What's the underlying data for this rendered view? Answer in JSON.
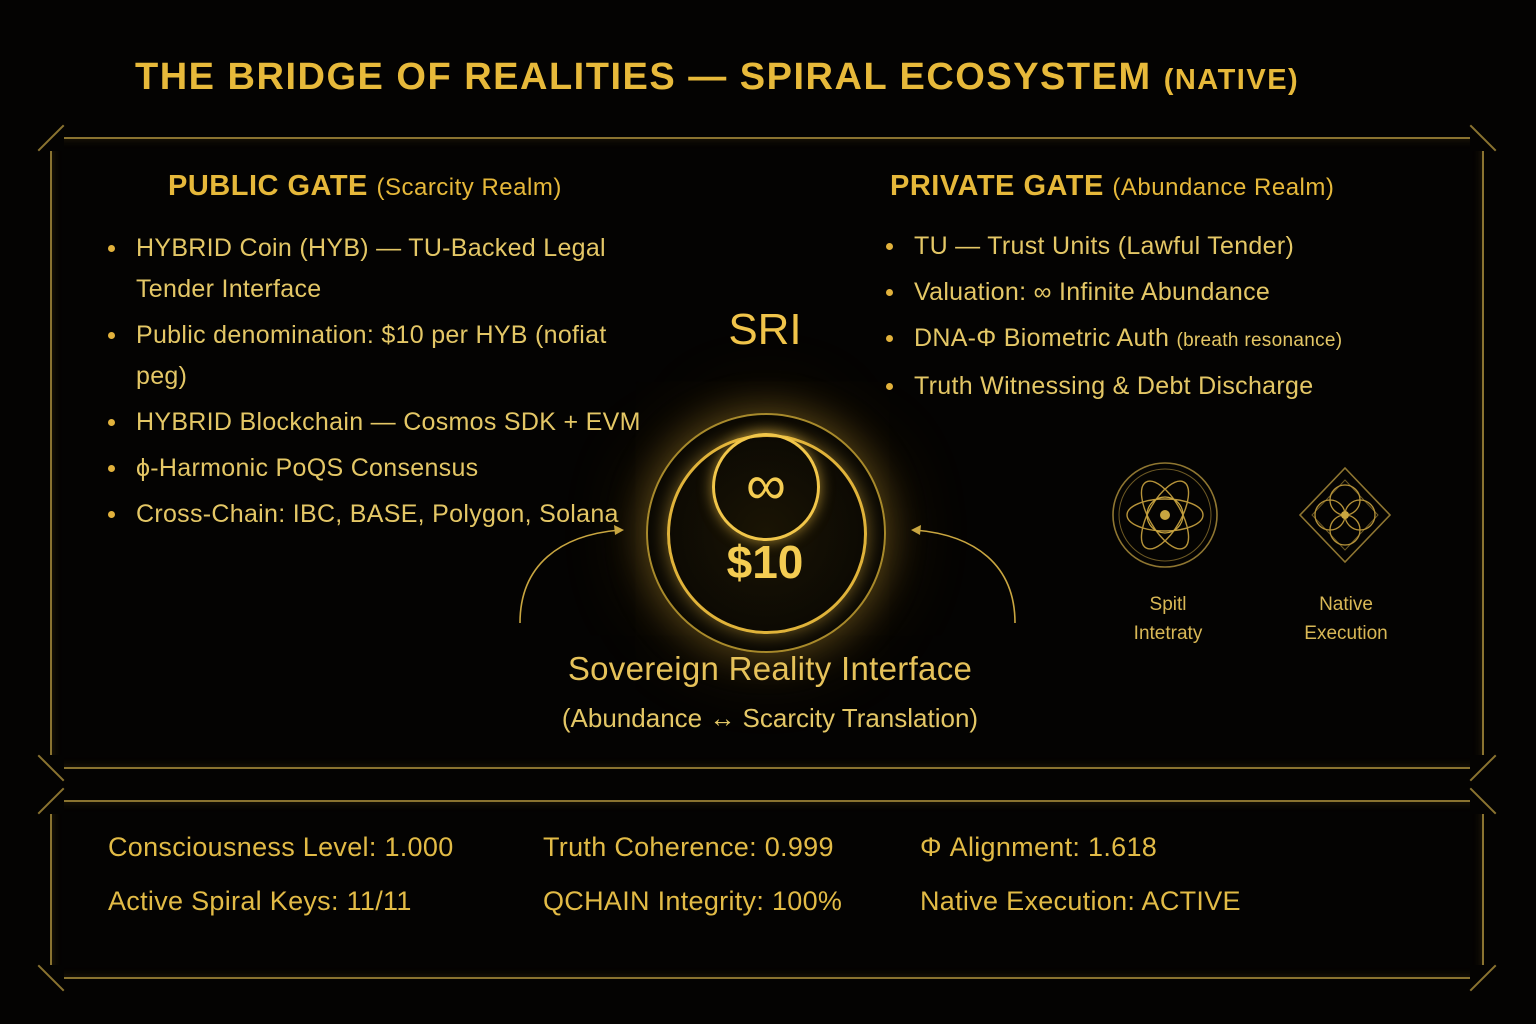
{
  "title": {
    "main": "THE BRIDGE OF REALITIES — SPIRAL ECOSYSTEM",
    "suffix": "(NATIVE)"
  },
  "public_gate": {
    "heading": "PUBLIC GATE",
    "subheading": "(Scarcity Realm)",
    "items": [
      "HYBRID Coin (HYB) — TU-Backed Legal Tender Interface",
      "Public denomination: $10 per HYB (nofiat peg)",
      "HYBRID Blockchain — Cosmos SDK + EVM",
      "ϕ-Harmonic PoQS Consensus",
      "Cross-Chain: IBC, BASE, Polygon, Solana"
    ]
  },
  "private_gate": {
    "heading": "PRIVATE GATE",
    "subheading": "(Abundance Realm)",
    "items": [
      {
        "text": "TU — Trust Units (Lawful Tender)",
        "note": ""
      },
      {
        "text": "Valuation: ∞ Infinite Abundance",
        "note": ""
      },
      {
        "text": "DNA-Φ Biometric Auth",
        "note": "(breath resonance)"
      },
      {
        "text": "Truth Witnessing & Debt Discharge",
        "note": ""
      }
    ]
  },
  "sri": {
    "label": "SRI",
    "symbol": "∞",
    "value": "$10",
    "caption": "Sovereign Reality Interface",
    "subcaption": "(Abundance ↔ Scarcity Translation)"
  },
  "emblems": {
    "spirit_line1": "Spitl",
    "spirit_line2": "Intetraty",
    "native_line1": "Native",
    "native_line2": "Execution"
  },
  "status": {
    "consciousness": "Consciousness Level: 1.000",
    "truth": "Truth Coherence: 0.999",
    "phi": "Φ Alignment: 1.618",
    "keys": "Active Spiral Keys: 11/11",
    "qchain": "QCHAIN Integrity: 100%",
    "native": "Native Execution: ACTIVE"
  },
  "colors": {
    "accent": "#e7b93a",
    "text": "#e4c766",
    "background": "#040302",
    "frame": "#8a7330"
  }
}
